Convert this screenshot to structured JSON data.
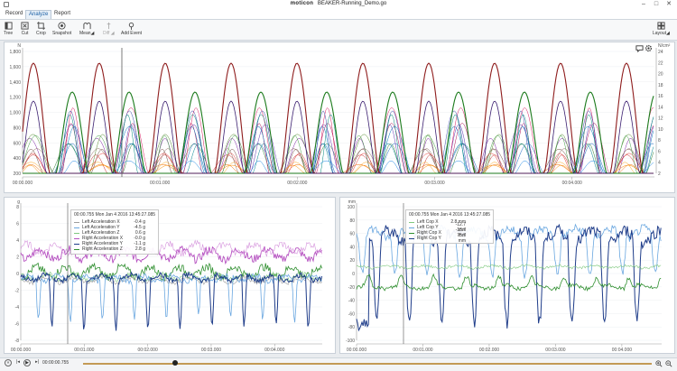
{
  "window": {
    "title": "BEAKER-Running_Demo.go",
    "brand": "moticon"
  },
  "menu": {
    "tabs": [
      "Record",
      "Analyze",
      "Report"
    ],
    "active_tab": "Analyze"
  },
  "toolbar": {
    "tree": "Tree",
    "cut": "Cut",
    "crop": "Crop",
    "snapshot": "Snapshot",
    "mean": "Mean◢",
    "diff": "Diff ◢",
    "add_event": "Add Event",
    "layout": "Layout◢"
  },
  "top_plot": {
    "left_unit": "N",
    "right_unit": "N/cm²",
    "y_left_ticks": [
      "1,800",
      "1,600",
      "1,400",
      "1,200",
      "1,000",
      "800",
      "600",
      "400",
      "200"
    ],
    "y_right_ticks": [
      "24",
      "22",
      "20",
      "18",
      "16",
      "14",
      "12",
      "10",
      "8",
      "6",
      "4",
      "2"
    ],
    "x_ticks": [
      "00:00.000",
      "00:01.000",
      "00:02.000",
      "00:03.000",
      "00:04.000"
    ]
  },
  "bl_plot": {
    "unit": "g",
    "y_ticks": [
      "8",
      "6",
      "4",
      "2",
      "0",
      "-2",
      "-4",
      "-6",
      "-8"
    ],
    "x_ticks": [
      "00:00.000",
      "00:01.000",
      "00:02.000",
      "00:03.000",
      "00:04.000"
    ],
    "tooltip": {
      "header": "00:00.755 Mon Jan 4 2016 13:45:27.085",
      "rows": [
        {
          "name": "Left Acceleration X",
          "value": "-0.4 g",
          "color": "#9e9e9e"
        },
        {
          "name": "Left Acceleration Y",
          "value": "-4.5 g",
          "color": "#6aa7e0"
        },
        {
          "name": "Left Acceleration Z",
          "value": "0.6 g",
          "color": "#7fc97f"
        },
        {
          "name": "Right Acceleration X",
          "value": "-0.0 g",
          "color": "#b54fc0"
        },
        {
          "name": "Right Acceleration Y",
          "value": "-1.1 g",
          "color": "#1f3d8a"
        },
        {
          "name": "Right Acceleration Z",
          "value": "2.8 g",
          "color": "#2f8f2f"
        }
      ]
    }
  },
  "br_plot": {
    "unit": "mm",
    "y_ticks": [
      "100",
      "80",
      "60",
      "40",
      "20",
      "0",
      "-20",
      "-40",
      "-60",
      "-80",
      "-100"
    ],
    "x_ticks": [
      "00:00.000",
      "00:01.000",
      "00:02.000",
      "00:03.000",
      "00:04.000"
    ],
    "tooltip": {
      "rows": [
        {
          "name": "Left Cop X",
          "value": "2.8 mm",
          "color": "#7fc97f"
        },
        {
          "name": "Left Cop Y",
          "value": "-12.7 mm",
          "color": "#6aa7e0"
        },
        {
          "name": "Right Cop X",
          "value": "-13.7 mm",
          "color": "#2f8f2f"
        },
        {
          "name": "Right Cop Y",
          "value": "75.7 mm",
          "color": "#1f3d8a"
        }
      ]
    }
  },
  "player": {
    "timecode": "00:00:00.755",
    "position": 0.16
  }
}
